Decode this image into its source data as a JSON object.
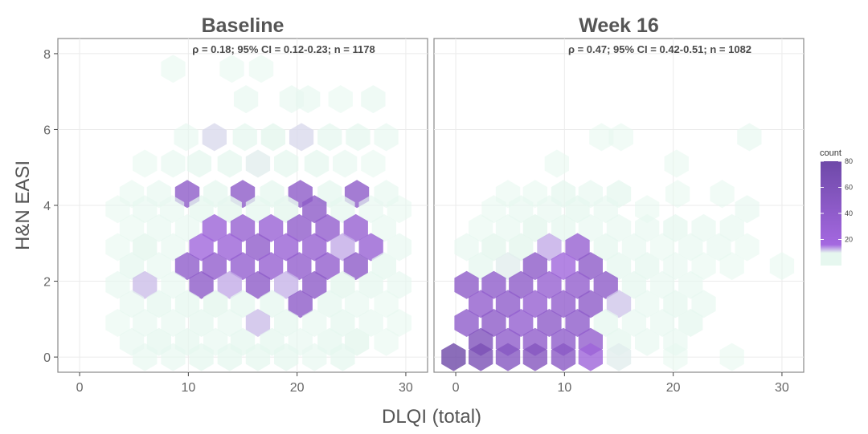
{
  "chart_data": {
    "type": "hexbin",
    "xlabel": "DLQI (total)",
    "ylabel": "H&N EASI",
    "xlim": [
      -2,
      32
    ],
    "ylim": [
      -0.4,
      8.4
    ],
    "xticks": [
      0,
      10,
      20,
      30
    ],
    "yticks": [
      0,
      2,
      4,
      6,
      8
    ],
    "grid": true,
    "legend": {
      "title": "count",
      "position": "right",
      "ticks": [
        20,
        40,
        60,
        80
      ],
      "max": 80,
      "colors": [
        "#e6f7ef",
        "#a468e0",
        "#6e49a8"
      ]
    },
    "panels": [
      {
        "title": "Baseline",
        "annotation": "ρ = 0.18; 95% CI = 0.12-0.23; n = 1178",
        "cells": [
          [
            8.6,
            7.6,
            2
          ],
          [
            14,
            7.6,
            2
          ],
          [
            16.7,
            7.6,
            2
          ],
          [
            15.3,
            6.8,
            3
          ],
          [
            21,
            6.8,
            3
          ],
          [
            24,
            6.8,
            2
          ],
          [
            27,
            6.8,
            3
          ],
          [
            19.5,
            6.8,
            3
          ],
          [
            9.8,
            5.8,
            3
          ],
          [
            12.4,
            5.8,
            8
          ],
          [
            15.2,
            5.8,
            4
          ],
          [
            17.8,
            5.8,
            5
          ],
          [
            20.4,
            5.8,
            8
          ],
          [
            23,
            5.8,
            4
          ],
          [
            25.6,
            5.8,
            4
          ],
          [
            28.2,
            5.8,
            3
          ],
          [
            6,
            5.1,
            2
          ],
          [
            8.6,
            5.1,
            3
          ],
          [
            11,
            5.1,
            4
          ],
          [
            13.8,
            5.1,
            4
          ],
          [
            16.4,
            5.1,
            6
          ],
          [
            19,
            5.1,
            4
          ],
          [
            21.8,
            5.1,
            4
          ],
          [
            24.4,
            5.1,
            3
          ],
          [
            27,
            5.1,
            2
          ],
          [
            4.8,
            4.3,
            2
          ],
          [
            7.3,
            4.3,
            3
          ],
          [
            9.9,
            4.3,
            46
          ],
          [
            12.5,
            4.3,
            4
          ],
          [
            15,
            4.3,
            46
          ],
          [
            17.7,
            4.3,
            4
          ],
          [
            20.3,
            4.3,
            46
          ],
          [
            23,
            4.3,
            4
          ],
          [
            25.5,
            4.3,
            46
          ],
          [
            28.2,
            4.3,
            3
          ],
          [
            3.5,
            3.9,
            2
          ],
          [
            6,
            3.9,
            3
          ],
          [
            8.5,
            3.9,
            3
          ],
          [
            11.2,
            3.9,
            4
          ],
          [
            13.8,
            3.9,
            5
          ],
          [
            16.4,
            3.9,
            4
          ],
          [
            19,
            3.9,
            5
          ],
          [
            21.6,
            3.9,
            46
          ],
          [
            24.2,
            3.9,
            4
          ],
          [
            26.8,
            3.9,
            3
          ],
          [
            29.4,
            3.9,
            2
          ],
          [
            4.8,
            3.4,
            2
          ],
          [
            7.3,
            3.4,
            3
          ],
          [
            9.9,
            3.4,
            3
          ],
          [
            12.4,
            3.4,
            30
          ],
          [
            15,
            3.4,
            36
          ],
          [
            17.6,
            3.4,
            32
          ],
          [
            20.2,
            3.4,
            42
          ],
          [
            22.8,
            3.4,
            40
          ],
          [
            25.4,
            3.4,
            36
          ],
          [
            28,
            3.4,
            3
          ],
          [
            3.5,
            2.9,
            2
          ],
          [
            6,
            2.9,
            5
          ],
          [
            8.6,
            2.9,
            3
          ],
          [
            11.2,
            2.9,
            24
          ],
          [
            13.8,
            2.9,
            30
          ],
          [
            16.4,
            2.9,
            42
          ],
          [
            19,
            2.9,
            32
          ],
          [
            21.6,
            2.9,
            36
          ],
          [
            24.2,
            2.9,
            13
          ],
          [
            26.8,
            2.9,
            34
          ],
          [
            29.4,
            2.9,
            3
          ],
          [
            4.8,
            2.4,
            4
          ],
          [
            7.3,
            2.4,
            3
          ],
          [
            9.9,
            2.4,
            44
          ],
          [
            12.4,
            2.4,
            40
          ],
          [
            15,
            2.4,
            38
          ],
          [
            17.6,
            2.4,
            36
          ],
          [
            20.2,
            2.4,
            40
          ],
          [
            22.8,
            2.4,
            40
          ],
          [
            25.4,
            2.4,
            46
          ],
          [
            28,
            2.4,
            4
          ],
          [
            3.5,
            1.9,
            3
          ],
          [
            6,
            1.9,
            11
          ],
          [
            8.6,
            1.9,
            3
          ],
          [
            11.2,
            1.9,
            46
          ],
          [
            13.8,
            1.9,
            13
          ],
          [
            16.4,
            1.9,
            46
          ],
          [
            19,
            1.9,
            12
          ],
          [
            21.6,
            1.9,
            46
          ],
          [
            24.2,
            1.9,
            5
          ],
          [
            26.8,
            1.9,
            4
          ],
          [
            29.4,
            1.9,
            3
          ],
          [
            4.8,
            1.4,
            3
          ],
          [
            7.3,
            1.4,
            4
          ],
          [
            9.9,
            1.4,
            4
          ],
          [
            12.5,
            1.4,
            5
          ],
          [
            15,
            1.4,
            4
          ],
          [
            17.7,
            1.4,
            4
          ],
          [
            20.3,
            1.4,
            46
          ],
          [
            23,
            1.4,
            4
          ],
          [
            25.5,
            1.4,
            3
          ],
          [
            28.2,
            1.4,
            2
          ],
          [
            3.5,
            0.9,
            2
          ],
          [
            6,
            0.9,
            3
          ],
          [
            8.6,
            0.9,
            3
          ],
          [
            11.2,
            0.9,
            4
          ],
          [
            13.8,
            0.9,
            3
          ],
          [
            16.4,
            0.9,
            11
          ],
          [
            19,
            0.9,
            4
          ],
          [
            21.6,
            0.9,
            3
          ],
          [
            24.2,
            0.9,
            4
          ],
          [
            26.8,
            0.9,
            3
          ],
          [
            29.4,
            0.9,
            2
          ],
          [
            4.8,
            0.4,
            3
          ],
          [
            7.3,
            0.4,
            4
          ],
          [
            9.9,
            0.4,
            4
          ],
          [
            12.5,
            0.4,
            3
          ],
          [
            15,
            0.4,
            4
          ],
          [
            17.7,
            0.4,
            4
          ],
          [
            20.3,
            0.4,
            3
          ],
          [
            23,
            0.4,
            4
          ],
          [
            25.5,
            0.4,
            5
          ],
          [
            28.2,
            0.4,
            2
          ],
          [
            6,
            0.0,
            3
          ],
          [
            8.6,
            0.0,
            3
          ],
          [
            11.2,
            0.0,
            4
          ],
          [
            13.8,
            0.0,
            4
          ],
          [
            16.4,
            0.0,
            4
          ],
          [
            19,
            0.0,
            4
          ],
          [
            21.6,
            0.0,
            3
          ],
          [
            24.2,
            0.0,
            4
          ]
        ]
      },
      {
        "title": "Week 16",
        "annotation": "ρ = 0.47; 95% CI = 0.42-0.51; n = 1082",
        "cells": [
          [
            13.4,
            5.8,
            2
          ],
          [
            15.2,
            5.8,
            2
          ],
          [
            27,
            5.8,
            3
          ],
          [
            9.3,
            5.1,
            2
          ],
          [
            20.3,
            5.1,
            2
          ],
          [
            4.8,
            4.3,
            2
          ],
          [
            7.3,
            4.3,
            2
          ],
          [
            9.9,
            4.3,
            4
          ],
          [
            12.4,
            4.3,
            3
          ],
          [
            15,
            4.3,
            4
          ],
          [
            20.4,
            4.3,
            2
          ],
          [
            24.5,
            4.3,
            2
          ],
          [
            3.5,
            3.9,
            2
          ],
          [
            6,
            3.9,
            3
          ],
          [
            8.6,
            3.9,
            3
          ],
          [
            11.2,
            3.9,
            4
          ],
          [
            13.8,
            3.9,
            3
          ],
          [
            17.6,
            3.9,
            2
          ],
          [
            26.8,
            3.9,
            3
          ],
          [
            2.3,
            3.4,
            2
          ],
          [
            4.8,
            3.4,
            3
          ],
          [
            7.3,
            3.4,
            5
          ],
          [
            9.9,
            3.4,
            4
          ],
          [
            12.4,
            3.4,
            3
          ],
          [
            15,
            3.4,
            3
          ],
          [
            17.6,
            3.4,
            3
          ],
          [
            20.2,
            3.4,
            4
          ],
          [
            22.8,
            3.4,
            3
          ],
          [
            25.4,
            3.4,
            3
          ],
          [
            1,
            2.9,
            3
          ],
          [
            3.5,
            2.9,
            5
          ],
          [
            6,
            2.9,
            5
          ],
          [
            8.6,
            2.9,
            13
          ],
          [
            11.2,
            2.9,
            36
          ],
          [
            13.8,
            2.9,
            4
          ],
          [
            16.4,
            2.9,
            3
          ],
          [
            19,
            2.9,
            2
          ],
          [
            21.6,
            2.9,
            3
          ],
          [
            24.2,
            2.9,
            3
          ],
          [
            26.8,
            2.9,
            2
          ],
          [
            2.3,
            2.4,
            4
          ],
          [
            4.8,
            2.4,
            6
          ],
          [
            7.3,
            2.4,
            46
          ],
          [
            9.9,
            2.4,
            24
          ],
          [
            12.4,
            2.4,
            46
          ],
          [
            15,
            2.4,
            4
          ],
          [
            17.6,
            2.4,
            4
          ],
          [
            20.2,
            2.4,
            3
          ],
          [
            22.8,
            2.4,
            2
          ],
          [
            25.4,
            2.4,
            2
          ],
          [
            30,
            2.4,
            2
          ],
          [
            1,
            1.9,
            46
          ],
          [
            3.5,
            1.9,
            44
          ],
          [
            6,
            1.9,
            46
          ],
          [
            8.6,
            1.9,
            36
          ],
          [
            11.2,
            1.9,
            40
          ],
          [
            13.8,
            1.9,
            46
          ],
          [
            16.4,
            1.9,
            4
          ],
          [
            19,
            1.9,
            3
          ],
          [
            21.6,
            1.9,
            3
          ],
          [
            2.3,
            1.4,
            40
          ],
          [
            4.8,
            1.4,
            44
          ],
          [
            7.3,
            1.4,
            36
          ],
          [
            9.9,
            1.4,
            40
          ],
          [
            12.4,
            1.4,
            46
          ],
          [
            15,
            1.4,
            10
          ],
          [
            17.6,
            1.4,
            3
          ],
          [
            20.2,
            1.4,
            4
          ],
          [
            22.8,
            1.4,
            3
          ],
          [
            1,
            0.9,
            44
          ],
          [
            3.5,
            0.9,
            46
          ],
          [
            6,
            0.9,
            38
          ],
          [
            8.6,
            0.9,
            46
          ],
          [
            11.2,
            0.9,
            44
          ],
          [
            13.8,
            0.9,
            4
          ],
          [
            16.4,
            0.9,
            3
          ],
          [
            19,
            0.9,
            3
          ],
          [
            21.6,
            0.9,
            4
          ],
          [
            2.3,
            0.4,
            60
          ],
          [
            4.8,
            0.4,
            44
          ],
          [
            7.3,
            0.4,
            42
          ],
          [
            9.9,
            0.4,
            44
          ],
          [
            12.4,
            0.4,
            40
          ],
          [
            15,
            0.4,
            4
          ],
          [
            17.6,
            0.4,
            3
          ],
          [
            20.2,
            0.4,
            3
          ],
          [
            -0.2,
            0.0,
            80
          ],
          [
            2.3,
            0.0,
            66
          ],
          [
            4.8,
            0.0,
            54
          ],
          [
            7.3,
            0.0,
            56
          ],
          [
            9.9,
            0.0,
            50
          ],
          [
            12.4,
            0.0,
            28
          ],
          [
            15,
            0.0,
            6
          ],
          [
            20.2,
            0.0,
            2
          ],
          [
            25.4,
            0.0,
            2
          ]
        ]
      }
    ]
  }
}
